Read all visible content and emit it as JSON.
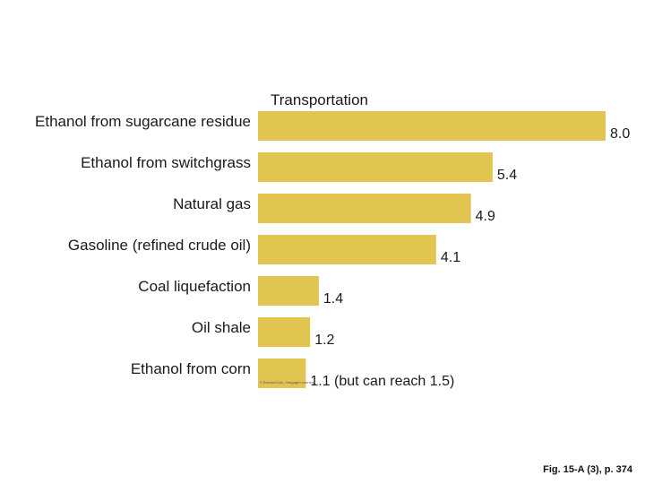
{
  "chart_data": {
    "type": "bar",
    "orientation": "horizontal",
    "title": "Transportation",
    "categories": [
      "Ethanol from sugarcane residue",
      "Ethanol from switchgrass",
      "Natural gas",
      "Gasoline (refined crude oil)",
      "Coal liquefaction",
      "Oil shale",
      "Ethanol from corn"
    ],
    "values": [
      8.0,
      5.4,
      4.9,
      4.1,
      1.4,
      1.2,
      1.1
    ],
    "value_labels": [
      "8.0",
      "5.4",
      "4.9",
      "4.1",
      "1.4",
      "1.2",
      "1.1 (but can reach 1.5)"
    ],
    "bar_color": "#e2c450",
    "xlim": [
      0,
      8.0
    ],
    "grid": false,
    "legend": "none"
  },
  "credit": "© Brooks/Cole, Cengage Learning",
  "footer": "Fig. 15-A (3), p. 374"
}
